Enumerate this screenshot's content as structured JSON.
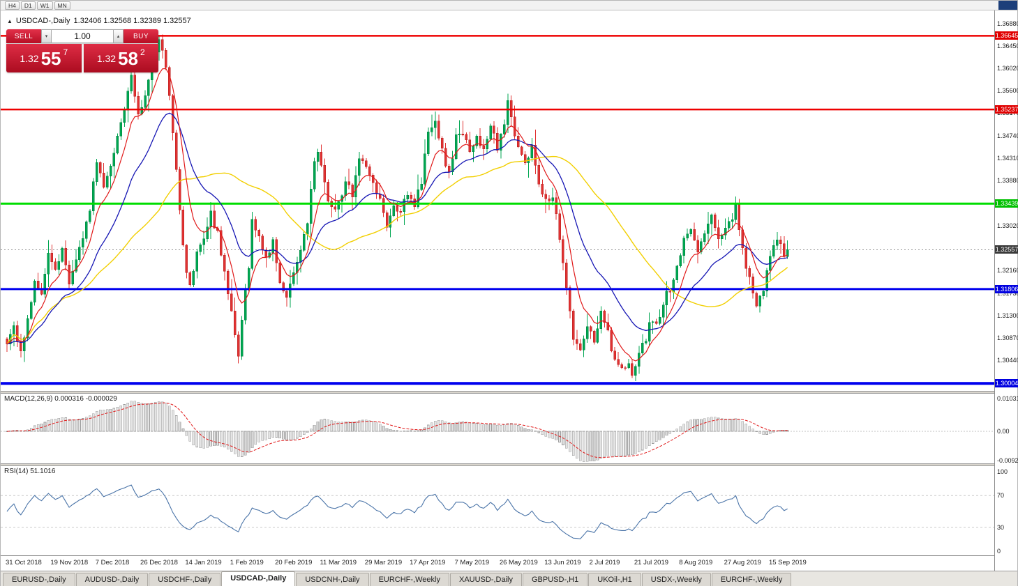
{
  "window": {
    "toolbar_timeframes": [
      "H4",
      "D1",
      "W1",
      "MN"
    ]
  },
  "chart_header": {
    "icon": "▲",
    "title": "USDCAD-,Daily",
    "ohlc": "1.32406 1.32568 1.32389 1.32557"
  },
  "trade_panel": {
    "sell_label": "SELL",
    "buy_label": "BUY",
    "volume": "1.00",
    "spin_down_icon": "▾",
    "spin_up_icon": "▴",
    "sell_price": {
      "prefix": "1.32",
      "big": "55",
      "sup": "7"
    },
    "buy_price": {
      "prefix": "1.32",
      "big": "58",
      "sup": "2"
    }
  },
  "price_axis": {
    "labels": [
      "1.36880",
      "1.36450",
      "1.36020",
      "1.35600",
      "1.35170",
      "1.34740",
      "1.34310",
      "1.33880",
      "1.33450",
      "1.33020",
      "1.32590",
      "1.32160",
      "1.31730",
      "1.31300",
      "1.30870",
      "1.30440",
      "1.30010"
    ],
    "markers": [
      {
        "text": "1.36645",
        "price": 1.36645,
        "color": "#e00000"
      },
      {
        "text": "1.35237",
        "price": 1.35237,
        "color": "#e00000"
      },
      {
        "text": "1.33439",
        "price": 1.33439,
        "color": "#00c000"
      },
      {
        "text": "1.32557",
        "price": 1.32557,
        "color": "#3a3a3a"
      },
      {
        "text": "1.31806",
        "price": 1.31806,
        "color": "#0000e0"
      },
      {
        "text": "1.30004",
        "price": 1.30004,
        "color": "#0000e0"
      }
    ]
  },
  "indicators": {
    "macd": {
      "label": "MACD(12,26,9) 0.000316 -0.000029",
      "axis_labels": [
        {
          "text": "0.01031",
          "value": 0.01031
        },
        {
          "text": "0.00",
          "value": 0
        },
        {
          "text": "-0.00920",
          "value": -0.0092
        }
      ]
    },
    "rsi": {
      "label": "RSI(14) 51.1016",
      "axis_labels": [
        {
          "text": "100",
          "value": 100
        },
        {
          "text": "70",
          "value": 70
        },
        {
          "text": "30",
          "value": 30
        },
        {
          "text": "0",
          "value": 0
        }
      ]
    }
  },
  "tabs": [
    {
      "label": "EURUSD-,Daily"
    },
    {
      "label": "AUDUSD-,Daily"
    },
    {
      "label": "USDCHF-,Daily"
    },
    {
      "label": "USDCAD-,Daily",
      "active": true
    },
    {
      "label": "USDCNH-,Daily"
    },
    {
      "label": "EURCHF-,Weekly"
    },
    {
      "label": "XAUUSD-,Daily"
    },
    {
      "label": "GBPUSD-,H1"
    },
    {
      "label": "UKOil-,H1"
    },
    {
      "label": "USDX-,Weekly"
    },
    {
      "label": "EURCHF-,Weekly"
    }
  ],
  "chart_data": {
    "type": "candlestick",
    "symbol": "USDCAD",
    "timeframe": "Daily",
    "candle_count": 227,
    "current_price": 1.32557,
    "visible_price_range": [
      1.2986,
      1.3713
    ],
    "price_anchors": [
      [
        0,
        1.3082
      ],
      [
        2,
        1.3106
      ],
      [
        4,
        1.3058
      ],
      [
        6,
        1.3122
      ],
      [
        8,
        1.319
      ],
      [
        10,
        1.3168
      ],
      [
        12,
        1.3248
      ],
      [
        14,
        1.3218
      ],
      [
        16,
        1.3258
      ],
      [
        18,
        1.3196
      ],
      [
        20,
        1.3242
      ],
      [
        22,
        1.328
      ],
      [
        24,
        1.3335
      ],
      [
        26,
        1.3425
      ],
      [
        28,
        1.3372
      ],
      [
        30,
        1.342
      ],
      [
        32,
        1.3475
      ],
      [
        34,
        1.352
      ],
      [
        36,
        1.3588
      ],
      [
        38,
        1.352
      ],
      [
        40,
        1.3548
      ],
      [
        42,
        1.362
      ],
      [
        44,
        1.3658
      ],
      [
        46,
        1.361
      ],
      [
        48,
        1.3485
      ],
      [
        50,
        1.333
      ],
      [
        52,
        1.321
      ],
      [
        53,
        1.3188
      ],
      [
        55,
        1.3246
      ],
      [
        57,
        1.3272
      ],
      [
        59,
        1.3322
      ],
      [
        61,
        1.3288
      ],
      [
        63,
        1.3208
      ],
      [
        65,
        1.3138
      ],
      [
        67,
        1.3058
      ],
      [
        68,
        1.3122
      ],
      [
        70,
        1.3228
      ],
      [
        71,
        1.3308
      ],
      [
        73,
        1.3282
      ],
      [
        75,
        1.3242
      ],
      [
        77,
        1.3272
      ],
      [
        79,
        1.3198
      ],
      [
        81,
        1.3162
      ],
      [
        83,
        1.3218
      ],
      [
        85,
        1.3248
      ],
      [
        87,
        1.3312
      ],
      [
        89,
        1.3422
      ],
      [
        90,
        1.3448
      ],
      [
        92,
        1.3378
      ],
      [
        94,
        1.3332
      ],
      [
        96,
        1.3342
      ],
      [
        98,
        1.3388
      ],
      [
        100,
        1.3358
      ],
      [
        102,
        1.3432
      ],
      [
        104,
        1.3418
      ],
      [
        106,
        1.3382
      ],
      [
        108,
        1.3358
      ],
      [
        110,
        1.3302
      ],
      [
        112,
        1.3342
      ],
      [
        114,
        1.3332
      ],
      [
        116,
        1.3368
      ],
      [
        118,
        1.3342
      ],
      [
        120,
        1.3388
      ],
      [
        122,
        1.3482
      ],
      [
        124,
        1.3508
      ],
      [
        126,
        1.3442
      ],
      [
        128,
        1.3402
      ],
      [
        130,
        1.3468
      ],
      [
        132,
        1.3482
      ],
      [
        134,
        1.3438
      ],
      [
        136,
        1.3472
      ],
      [
        138,
        1.3442
      ],
      [
        140,
        1.3492
      ],
      [
        142,
        1.3452
      ],
      [
        144,
        1.3492
      ],
      [
        145,
        1.3548
      ],
      [
        146,
        1.3502
      ],
      [
        148,
        1.3455
      ],
      [
        150,
        1.3425
      ],
      [
        152,
        1.3448
      ],
      [
        154,
        1.3388
      ],
      [
        156,
        1.3348
      ],
      [
        158,
        1.3362
      ],
      [
        160,
        1.3272
      ],
      [
        162,
        1.3182
      ],
      [
        164,
        1.3092
      ],
      [
        166,
        1.3068
      ],
      [
        168,
        1.3108
      ],
      [
        170,
        1.3082
      ],
      [
        172,
        1.3132
      ],
      [
        174,
        1.3098
      ],
      [
        176,
        1.3042
      ],
      [
        178,
        1.3028
      ],
      [
        180,
        1.3046
      ],
      [
        181,
        1.3022
      ],
      [
        183,
        1.3058
      ],
      [
        185,
        1.3082
      ],
      [
        186,
        1.3118
      ],
      [
        188,
        1.3108
      ],
      [
        190,
        1.3158
      ],
      [
        192,
        1.3182
      ],
      [
        194,
        1.3222
      ],
      [
        196,
        1.3272
      ],
      [
        198,
        1.3302
      ],
      [
        200,
        1.3248
      ],
      [
        202,
        1.3292
      ],
      [
        204,
        1.3328
      ],
      [
        206,
        1.3272
      ],
      [
        208,
        1.3302
      ],
      [
        210,
        1.3318
      ],
      [
        211,
        1.3338
      ],
      [
        213,
        1.3258
      ],
      [
        215,
        1.3198
      ],
      [
        217,
        1.3148
      ],
      [
        219,
        1.3182
      ],
      [
        221,
        1.3238
      ],
      [
        223,
        1.3278
      ],
      [
        225,
        1.3248
      ],
      [
        226,
        1.32557
      ]
    ],
    "hlines": [
      {
        "price": 1.36645,
        "color": "#ee0000",
        "width": 2.5
      },
      {
        "price": 1.35237,
        "color": "#ee0000",
        "width": 2.5
      },
      {
        "price": 1.33439,
        "color": "#00dd00",
        "width": 3
      },
      {
        "price": 1.31806,
        "color": "#0000ee",
        "width": 3
      },
      {
        "price": 1.30004,
        "color": "#0000ee",
        "width": 4
      }
    ],
    "moving_averages": [
      {
        "method": "sma",
        "period": 45,
        "color": "#f2cf00",
        "width": 1.4
      },
      {
        "method": "ema",
        "period": 22,
        "color": "#1616b4",
        "width": 1.3
      },
      {
        "method": "ema",
        "period": 8,
        "color": "#e01818",
        "width": 1.2
      }
    ],
    "macd": {
      "fast": 12,
      "slow": 26,
      "signal": 9,
      "value": 0.000316,
      "signal_value": -2.9e-05,
      "axis_range": [
        -0.0092,
        0.01031
      ]
    },
    "rsi": {
      "period": 14,
      "value": 51.1016,
      "levels": [
        30,
        70
      ],
      "axis_range": [
        0,
        100
      ]
    },
    "colors": {
      "up": "#00a651",
      "up_border": "#00813e",
      "down": "#e03232",
      "down_border": "#b61f1f",
      "macd_bar_fill": "#e4e4e4",
      "macd_bar_stroke": "#9c9c9c",
      "macd_signal": "#e01818",
      "rsi_line": "#4a74a8",
      "level_dash": "#c8c8c8",
      "current_dotted": "#909090"
    },
    "dates": [
      {
        "label": "31 Oct 2018",
        "day": 0
      },
      {
        "label": "19 Nov 2018",
        "day": 13
      },
      {
        "label": "7 Dec 2018",
        "day": 26
      },
      {
        "label": "26 Dec 2018",
        "day": 39
      },
      {
        "label": "14 Jan 2019",
        "day": 52
      },
      {
        "label": "1 Feb 2019",
        "day": 65
      },
      {
        "label": "20 Feb 2019",
        "day": 78
      },
      {
        "label": "11 Mar 2019",
        "day": 91
      },
      {
        "label": "29 Mar 2019",
        "day": 104
      },
      {
        "label": "17 Apr 2019",
        "day": 117
      },
      {
        "label": "7 May 2019",
        "day": 130
      },
      {
        "label": "26 May 2019",
        "day": 143
      },
      {
        "label": "13 Jun 2019",
        "day": 156
      },
      {
        "label": "2 Jul 2019",
        "day": 169
      },
      {
        "label": "21 Jul 2019",
        "day": 182
      },
      {
        "label": "8 Aug 2019",
        "day": 195
      },
      {
        "label": "27 Aug 2019",
        "day": 208
      },
      {
        "label": "15 Sep 2019",
        "day": 221
      }
    ]
  }
}
